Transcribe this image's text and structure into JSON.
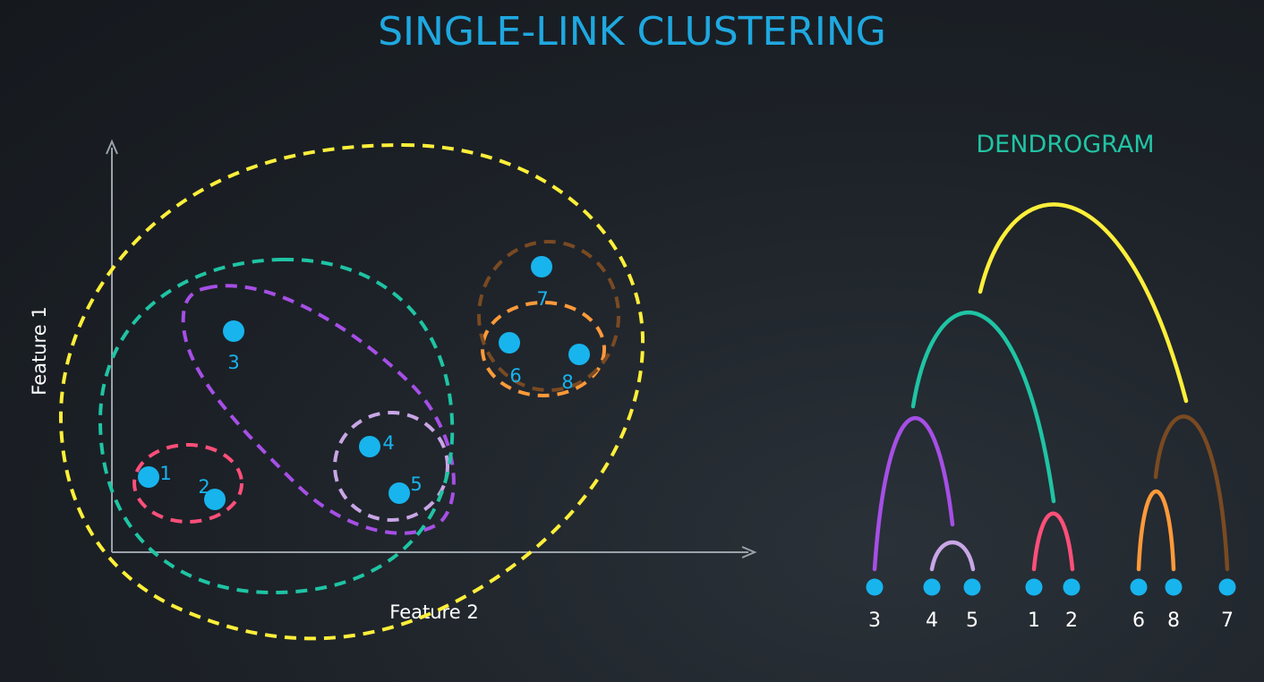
{
  "title": "SINGLE-LINK CLUSTERING",
  "scatter": {
    "xlabel": "Feature 2",
    "ylabel": "Feature 1",
    "points": [
      {
        "label": "1"
      },
      {
        "label": "2"
      },
      {
        "label": "3"
      },
      {
        "label": "4"
      },
      {
        "label": "5"
      },
      {
        "label": "6"
      },
      {
        "label": "7"
      },
      {
        "label": "8"
      }
    ],
    "clusters": [
      {
        "members": [
          "1",
          "2"
        ],
        "color": "#ff4f7a"
      },
      {
        "members": [
          "4",
          "5"
        ],
        "color": "#c9a6e6"
      },
      {
        "members": [
          "3",
          "4",
          "5"
        ],
        "color": "#a64fe6"
      },
      {
        "members": [
          "6",
          "8"
        ],
        "color": "#ff9a3a"
      },
      {
        "members": [
          "6",
          "7",
          "8"
        ],
        "color": "#7a4a22"
      },
      {
        "members": [
          "1",
          "2",
          "3",
          "4",
          "5"
        ],
        "color": "#1fc4a4"
      },
      {
        "members": [
          "1",
          "2",
          "3",
          "4",
          "5",
          "6",
          "7",
          "8"
        ],
        "color": "#ffef3a"
      }
    ]
  },
  "dendrogram": {
    "title": "DENDROGRAM",
    "leaves": [
      "3",
      "4",
      "5",
      "1",
      "2",
      "6",
      "8",
      "7"
    ],
    "merges": [
      {
        "left": "4",
        "right": "5",
        "color": "#c9a6e6"
      },
      {
        "left": "1",
        "right": "2",
        "color": "#ff4f7a"
      },
      {
        "left": "6",
        "right": "8",
        "color": "#ff9a3a"
      },
      {
        "left": "3",
        "right": "4-5",
        "color": "#a64fe6"
      },
      {
        "left": "6-8",
        "right": "7",
        "color": "#7a4a22"
      },
      {
        "left": "3-4-5",
        "right": "1-2",
        "color": "#1fc4a4"
      },
      {
        "left": "3-4-5-1-2",
        "right": "6-8-7",
        "color": "#ffef3a"
      }
    ]
  },
  "colors": {
    "title": "#1fa8e0",
    "point": "#18b4ee",
    "dendro_title": "#21c4a4",
    "axis": "#9aa3ab"
  }
}
